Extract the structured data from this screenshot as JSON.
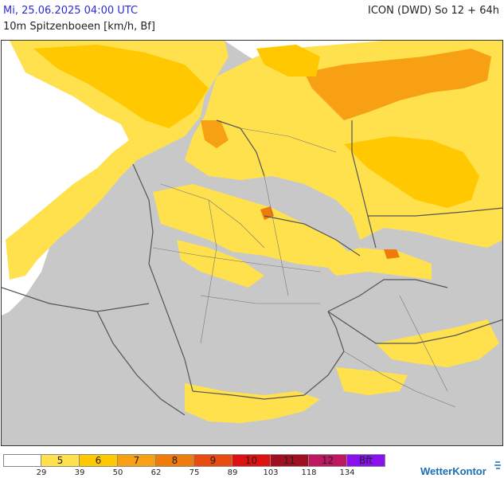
{
  "header": {
    "datetime": "Mi, 25.06.2025 04:00 UTC",
    "model": "ICON (DWD) So 12 + 64h",
    "parameter": "10m Spitzenboeen [km/h, Bf]"
  },
  "legend": {
    "classes": [
      {
        "label": "",
        "color": "#ffffff"
      },
      {
        "label": "5",
        "color": "#ffe14d"
      },
      {
        "label": "6",
        "color": "#ffc800"
      },
      {
        "label": "7",
        "color": "#f7a014"
      },
      {
        "label": "8",
        "color": "#f07a0a"
      },
      {
        "label": "9",
        "color": "#e84a10"
      },
      {
        "label": "10",
        "color": "#de1010"
      },
      {
        "label": "11",
        "color": "#a01020"
      },
      {
        "label": "12",
        "color": "#c01860"
      },
      {
        "label": "Bft",
        "color": "#8a10f0"
      }
    ],
    "ticks": [
      "29",
      "39",
      "50",
      "62",
      "75",
      "89",
      "103",
      "118",
      "134"
    ]
  },
  "branding": {
    "name": "WetterKontor",
    "icon": "wind-icon"
  },
  "colors": {
    "sea": "#ffffff",
    "land_calm": "#c8c8c8",
    "bft5": "#ffe14d",
    "bft6": "#ffc800",
    "bft7": "#f7a014",
    "border": "#555555"
  }
}
